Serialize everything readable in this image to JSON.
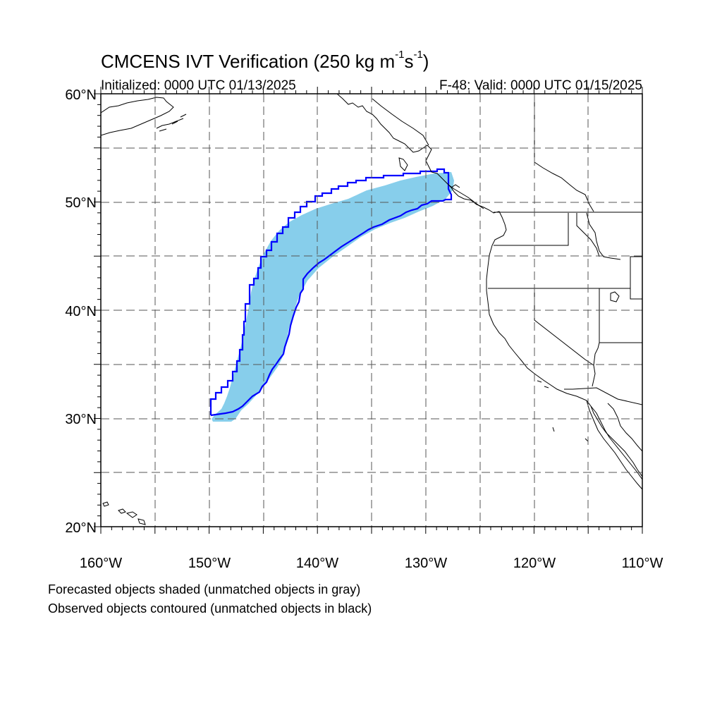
{
  "header": {
    "title_main": "CMCENS IVT Verification (250 kg m",
    "title_exp1": "-1",
    "title_mid": "s",
    "title_exp2": "-1",
    "title_end": ")",
    "initialized": "Initialized: 0000 UTC 01/13/2025",
    "valid": "F-48: Valid: 0000 UTC 01/15/2025"
  },
  "axes": {
    "lat_labels": [
      "60°N",
      "50°N",
      "40°N",
      "30°N",
      "20°N"
    ],
    "lon_labels": [
      "160°W",
      "150°W",
      "140°W",
      "130°W",
      "120°W",
      "110°W"
    ],
    "lat_range": [
      20,
      60
    ],
    "lon_range": [
      -160,
      -110
    ],
    "grid": "dashed every 5 degrees"
  },
  "legend_notes": [
    "Forecasted objects shaded (unmatched objects in gray)",
    "Observed objects contoured (unmatched objects in black)"
  ],
  "colors": {
    "forecast_fill": "#87ceeb",
    "observed_contour": "#0000ff",
    "coastline": "#000000",
    "grid": "#555555"
  }
}
